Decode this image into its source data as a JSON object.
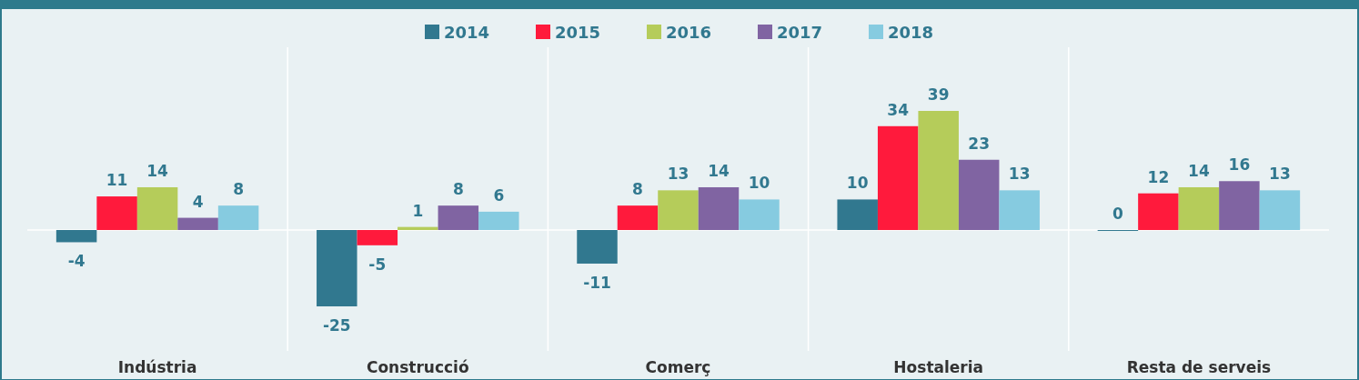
{
  "chart_data": {
    "type": "bar",
    "categories": [
      "Indústria",
      "Construcció",
      "Comerç",
      "Hostaleria",
      "Resta de serveis"
    ],
    "series": [
      {
        "name": "2014",
        "color": "#31788f",
        "values": [
          -4,
          -25,
          -11,
          10,
          0
        ]
      },
      {
        "name": "2015",
        "color": "#ff1a3c",
        "values": [
          11,
          -5,
          8,
          34,
          12
        ]
      },
      {
        "name": "2016",
        "color": "#b5cc5a",
        "values": [
          14,
          1,
          13,
          39,
          14
        ]
      },
      {
        "name": "2017",
        "color": "#8064a2",
        "values": [
          4,
          8,
          14,
          23,
          16
        ]
      },
      {
        "name": "2018",
        "color": "#86cbe0",
        "values": [
          8,
          6,
          10,
          13,
          13
        ]
      }
    ],
    "data_labels": true,
    "legend": "top",
    "grid": "x"
  }
}
